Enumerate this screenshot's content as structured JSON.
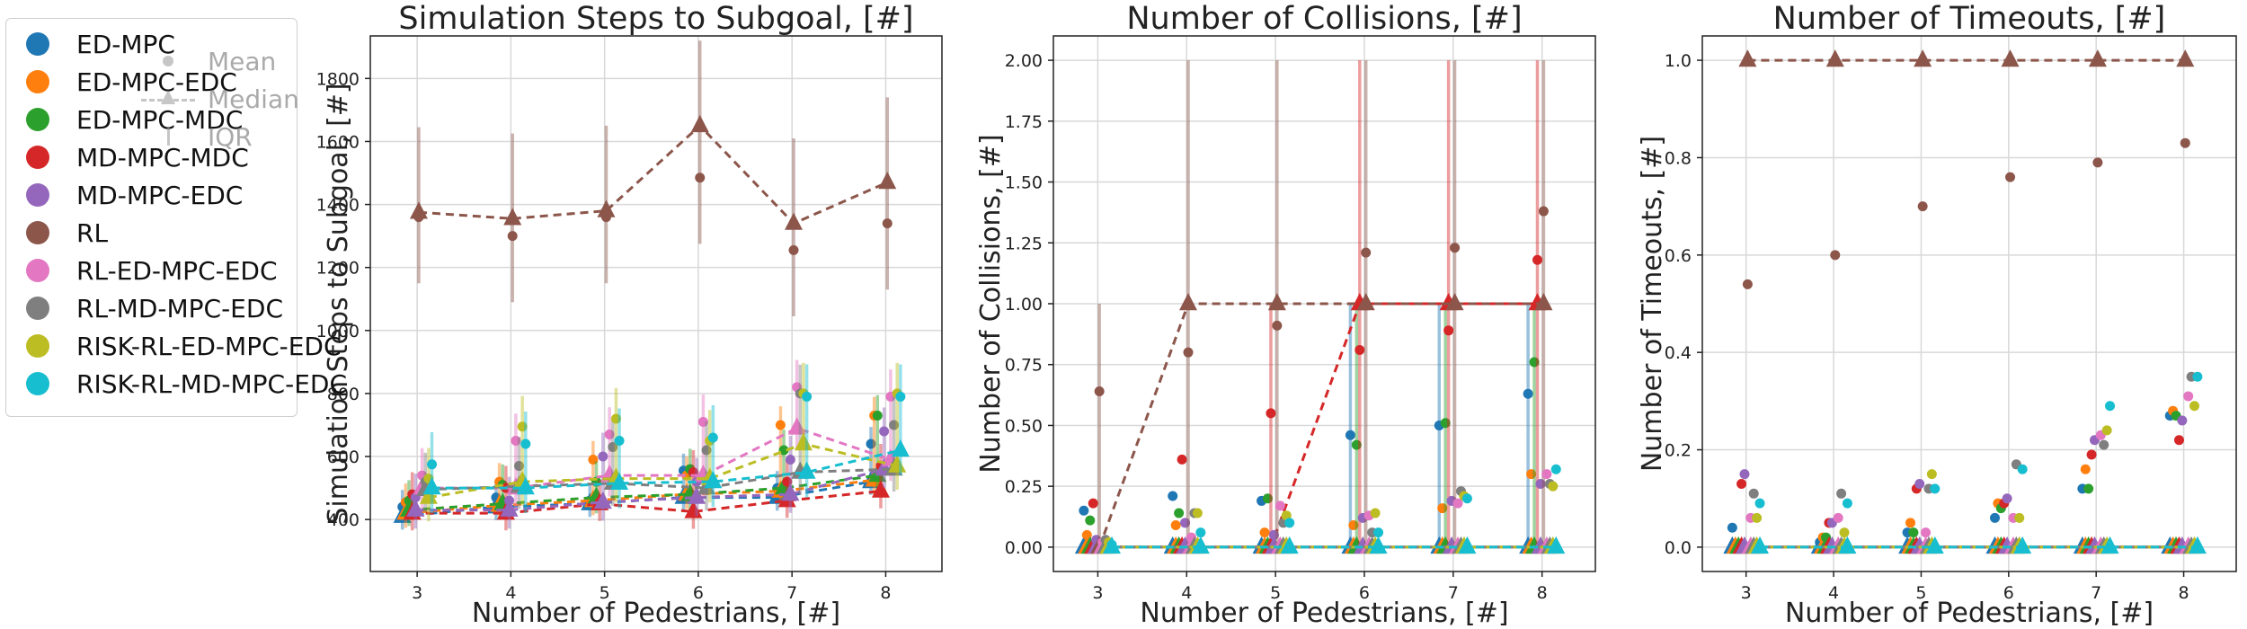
{
  "legend": {
    "methods": [
      {
        "name": "ED-MPC",
        "color": "#1f77b4"
      },
      {
        "name": "ED-MPC-EDC",
        "color": "#ff7f0e"
      },
      {
        "name": "ED-MPC-MDC",
        "color": "#2ca02c"
      },
      {
        "name": "MD-MPC-MDC",
        "color": "#d62728"
      },
      {
        "name": "MD-MPC-EDC",
        "color": "#9467bd"
      },
      {
        "name": "RL",
        "color": "#8c564b"
      },
      {
        "name": "RL-ED-MPC-EDC",
        "color": "#e377c2"
      },
      {
        "name": "RL-MD-MPC-EDC",
        "color": "#7f7f7f"
      },
      {
        "name": "RISK-RL-ED-MPC-EDC",
        "color": "#bcbd22"
      },
      {
        "name": "RISK-RL-MD-MPC-EDC",
        "color": "#17becf"
      }
    ],
    "stats": [
      "Mean",
      "Median",
      "IQR"
    ]
  },
  "chart_data": [
    {
      "type": "scatter",
      "title": "Simulation Steps to Subgoal, [#]",
      "xlabel": "Number of Pedestrians, [#]",
      "ylabel": "Simulation Steps to Subgoal, [#]",
      "x": [
        3,
        4,
        5,
        6,
        7,
        8
      ],
      "xlim": [
        2.5,
        8.6
      ],
      "ylim": [
        235,
        1935
      ],
      "xticks": [
        "3",
        "4",
        "5",
        "6",
        "7",
        "8"
      ],
      "yticks": [
        400,
        600,
        800,
        1000,
        1200,
        1400,
        1600,
        1800
      ],
      "grid": true,
      "series": [
        {
          "name": "ED-MPC",
          "mean": [
            440,
            470,
            460,
            555,
            500,
            640
          ],
          "median": [
            410,
            440,
            450,
            470,
            470,
            520
          ]
        },
        {
          "name": "ED-MPC-EDC",
          "mean": [
            455,
            520,
            590,
            540,
            700,
            730
          ],
          "median": [
            420,
            445,
            460,
            480,
            490,
            525
          ]
        },
        {
          "name": "ED-MPC-MDC",
          "mean": [
            460,
            510,
            520,
            560,
            620,
            730
          ],
          "median": [
            430,
            450,
            470,
            480,
            500,
            540
          ]
        },
        {
          "name": "MD-MPC-MDC",
          "mean": [
            480,
            500,
            455,
            550,
            520,
            570
          ],
          "median": [
            420,
            420,
            450,
            425,
            460,
            490
          ]
        },
        {
          "name": "MD-MPC-EDC",
          "mean": [
            470,
            460,
            600,
            520,
            590,
            680
          ],
          "median": [
            430,
            430,
            455,
            470,
            480,
            560
          ]
        },
        {
          "name": "RL",
          "mean": [
            1360,
            1300,
            1360,
            1485,
            1255,
            1340
          ],
          "median": [
            1375,
            1355,
            1380,
            1650,
            1340,
            1470
          ]
        },
        {
          "name": "RL-ED-MPC-EDC",
          "mean": [
            540,
            650,
            670,
            710,
            820,
            790
          ],
          "median": [
            500,
            500,
            540,
            540,
            690,
            590
          ]
        },
        {
          "name": "RL-MD-MPC-EDC",
          "mean": [
            520,
            570,
            630,
            620,
            800,
            700
          ],
          "median": [
            495,
            505,
            515,
            500,
            550,
            560
          ]
        },
        {
          "name": "RISK-RL-ED-MPC-EDC",
          "mean": [
            530,
            695,
            720,
            650,
            800,
            800
          ],
          "median": [
            470,
            520,
            530,
            530,
            640,
            570
          ]
        },
        {
          "name": "RISK-RL-MD-MPC-EDC",
          "mean": [
            575,
            640,
            650,
            660,
            790,
            790
          ],
          "median": [
            500,
            500,
            515,
            520,
            550,
            620
          ]
        }
      ]
    },
    {
      "type": "scatter",
      "title": "Number of Collisions, [#]",
      "xlabel": "Number of Pedestrians, [#]",
      "ylabel": "Number of Collisions, [#]",
      "x": [
        3,
        4,
        5,
        6,
        7,
        8
      ],
      "xlim": [
        2.5,
        8.6
      ],
      "ylim": [
        -0.1,
        2.1
      ],
      "xticks": [
        "3",
        "4",
        "5",
        "6",
        "7",
        "8"
      ],
      "yticks": [
        "0.00",
        "0.25",
        "0.50",
        "0.75",
        "1.00",
        "1.25",
        "1.50",
        "1.75",
        "2.00"
      ],
      "grid": true,
      "series": [
        {
          "name": "ED-MPC",
          "mean": [
            0.15,
            0.21,
            0.19,
            0.46,
            0.5,
            0.63
          ],
          "median": [
            0,
            0,
            0,
            0,
            0,
            0
          ]
        },
        {
          "name": "ED-MPC-EDC",
          "mean": [
            0.05,
            0.09,
            0.06,
            0.09,
            0.16,
            0.3
          ],
          "median": [
            0,
            0,
            0,
            0,
            0,
            0
          ]
        },
        {
          "name": "ED-MPC-MDC",
          "mean": [
            0.11,
            0.14,
            0.2,
            0.42,
            0.51,
            0.76
          ],
          "median": [
            0,
            0,
            0,
            0,
            0,
            0
          ]
        },
        {
          "name": "MD-MPC-MDC",
          "mean": [
            0.18,
            0.36,
            0.55,
            0.81,
            0.89,
            1.18
          ],
          "median": [
            0,
            0,
            0,
            1,
            1,
            1
          ]
        },
        {
          "name": "MD-MPC-EDC",
          "mean": [
            0.03,
            0.1,
            0.05,
            0.12,
            0.19,
            0.26
          ],
          "median": [
            0,
            0,
            0,
            0,
            0,
            0
          ]
        },
        {
          "name": "RL",
          "mean": [
            0.64,
            0.8,
            0.91,
            1.21,
            1.23,
            1.38
          ],
          "median": [
            0,
            1,
            1,
            1,
            1,
            1
          ]
        },
        {
          "name": "RL-ED-MPC-EDC",
          "mean": [
            0.02,
            0.04,
            0.17,
            0.13,
            0.18,
            0.3
          ],
          "median": [
            0,
            0,
            0,
            0,
            0,
            0
          ]
        },
        {
          "name": "RL-MD-MPC-EDC",
          "mean": [
            0.03,
            0.14,
            0.1,
            0.06,
            0.23,
            0.26
          ],
          "median": [
            0,
            0,
            0,
            0,
            0,
            0
          ]
        },
        {
          "name": "RISK-RL-ED-MPC-EDC",
          "mean": [
            0.02,
            0.14,
            0.13,
            0.14,
            0.21,
            0.25
          ],
          "median": [
            0,
            0,
            0,
            0,
            0,
            0
          ]
        },
        {
          "name": "RISK-RL-MD-MPC-EDC",
          "mean": [
            0.01,
            0.06,
            0.1,
            0.06,
            0.2,
            0.32
          ],
          "median": [
            0,
            0,
            0,
            0,
            0,
            0
          ]
        }
      ]
    },
    {
      "type": "scatter",
      "title": "Number of Timeouts, [#]",
      "xlabel": "Number of Pedestrians, [#]",
      "ylabel": "Number of Timeouts, [#]",
      "x": [
        3,
        4,
        5,
        6,
        7,
        8
      ],
      "xlim": [
        2.5,
        8.6
      ],
      "ylim": [
        -0.05,
        1.05
      ],
      "xticks": [
        "3",
        "4",
        "5",
        "6",
        "7",
        "8"
      ],
      "yticks": [
        "0.0",
        "0.2",
        "0.4",
        "0.6",
        "0.8",
        "1.0"
      ],
      "grid": true,
      "series": [
        {
          "name": "ED-MPC",
          "mean": [
            0.04,
            0.01,
            0.03,
            0.06,
            0.12,
            0.27
          ],
          "median": [
            0,
            0,
            0,
            0,
            0,
            0
          ]
        },
        {
          "name": "ED-MPC-EDC",
          "mean": [
            0,
            0.02,
            0.05,
            0.09,
            0.16,
            0.28
          ],
          "median": [
            0,
            0,
            0,
            0,
            0,
            0
          ]
        },
        {
          "name": "ED-MPC-MDC",
          "mean": [
            0,
            0.02,
            0.03,
            0.08,
            0.12,
            0.27
          ],
          "median": [
            0,
            0,
            0,
            0,
            0,
            0
          ]
        },
        {
          "name": "MD-MPC-MDC",
          "mean": [
            0.13,
            0.05,
            0.12,
            0.09,
            0.19,
            0.22
          ],
          "median": [
            0,
            0,
            0,
            0,
            0,
            0
          ]
        },
        {
          "name": "MD-MPC-EDC",
          "mean": [
            0.15,
            0.05,
            0.13,
            0.1,
            0.22,
            0.26
          ],
          "median": [
            0,
            0,
            0,
            0,
            0,
            0
          ]
        },
        {
          "name": "RL",
          "mean": [
            0.54,
            0.6,
            0.7,
            0.76,
            0.79,
            0.83
          ],
          "median": [
            1,
            1,
            1,
            1,
            1,
            1
          ]
        },
        {
          "name": "RL-ED-MPC-EDC",
          "mean": [
            0.06,
            0.06,
            0.03,
            0.06,
            0.23,
            0.31
          ],
          "median": [
            0,
            0,
            0,
            0,
            0,
            0
          ]
        },
        {
          "name": "RL-MD-MPC-EDC",
          "mean": [
            0.11,
            0.11,
            0.12,
            0.17,
            0.21,
            0.35
          ],
          "median": [
            0,
            0,
            0,
            0,
            0,
            0
          ]
        },
        {
          "name": "RISK-RL-ED-MPC-EDC",
          "mean": [
            0.06,
            0.03,
            0.15,
            0.06,
            0.24,
            0.29
          ],
          "median": [
            0,
            0,
            0,
            0,
            0,
            0
          ]
        },
        {
          "name": "RISK-RL-MD-MPC-EDC",
          "mean": [
            0.09,
            0.09,
            0.12,
            0.16,
            0.29,
            0.35
          ],
          "median": [
            0,
            0,
            0,
            0,
            0,
            0
          ]
        }
      ]
    }
  ]
}
